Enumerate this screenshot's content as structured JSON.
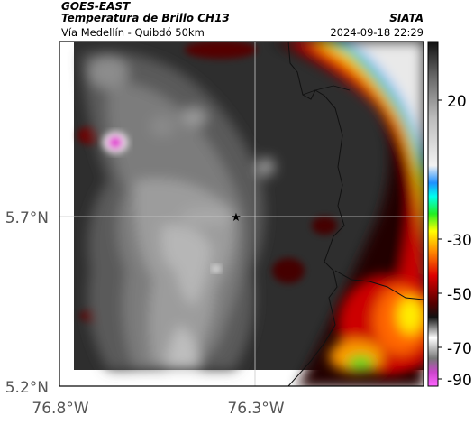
{
  "header": {
    "satellite": "GOES-EAST",
    "product": "Temperatura de Brillo CH13",
    "organization": "SIATA",
    "route": "Vía Medellín - Quibdó 50km",
    "timestamp": "2024-09-18 22:29"
  },
  "map": {
    "lat_ticks": [
      "5.7°N",
      "5.2°N"
    ],
    "lon_ticks": [
      "76.8°W",
      "76.3°W"
    ],
    "marker": "star",
    "gridlines": true
  },
  "colorbar": {
    "tick_labels": [
      "20",
      "-30",
      "-50",
      "-70",
      "-90"
    ],
    "colors": {
      "warm": "#f2f2f2",
      "cyan": "#1ec8ff",
      "green": "#22ee22",
      "yellow": "#ffff00",
      "orange": "#ff8800",
      "red": "#dd0000",
      "dark_red": "#550000",
      "gray": "#9a9a9a",
      "magenta": "#e040d0"
    }
  }
}
